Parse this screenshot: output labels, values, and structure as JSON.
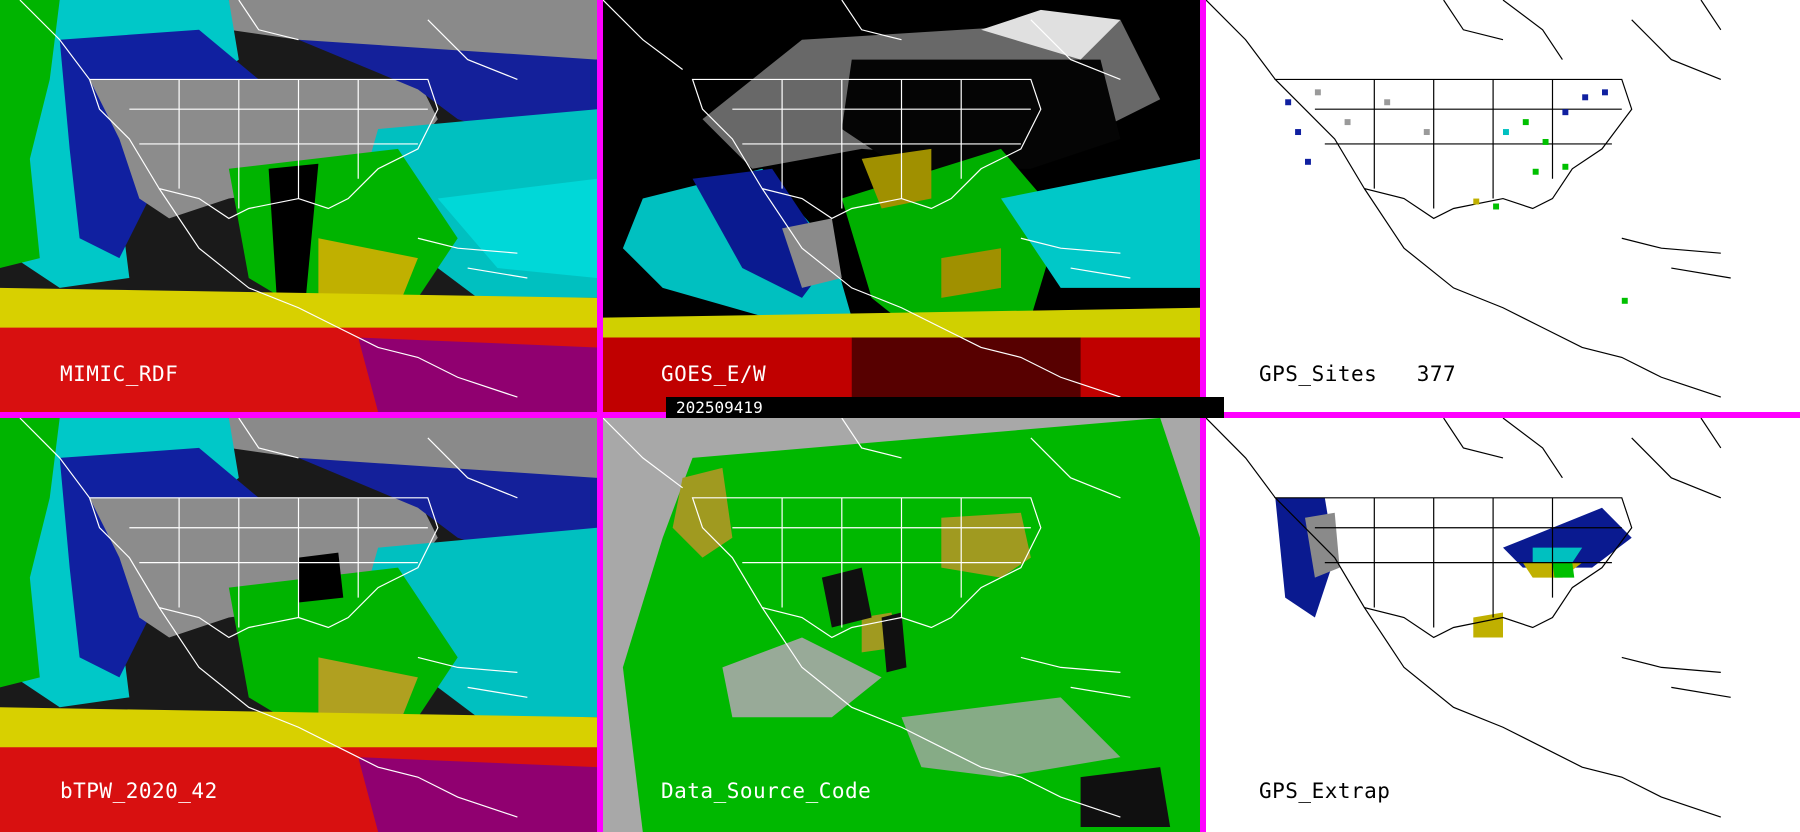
{
  "panels": {
    "mimic_rdf": {
      "label": "MIMIC_RDF"
    },
    "goes_ew": {
      "label": "GOES_E/W",
      "timestamp": "202509419"
    },
    "gps_sites": {
      "label": "GPS_Sites",
      "count": "377"
    },
    "btpw": {
      "label": "bTPW_2020_42"
    },
    "data_source": {
      "label": "Data_Source_Code"
    },
    "gps_extrap": {
      "label": "GPS_Extrap"
    }
  },
  "colors": {
    "divider": "#ff00ff",
    "tpw_scale": [
      "#ffffff",
      "#9a9a9a",
      "#0a0a8a",
      "#2030c0",
      "#00d8d8",
      "#00c000",
      "#c8c800",
      "#e02000",
      "#800080"
    ],
    "source_green": "#00b800",
    "source_olive": "#a09a20",
    "source_gray": "#a8a8a8"
  }
}
